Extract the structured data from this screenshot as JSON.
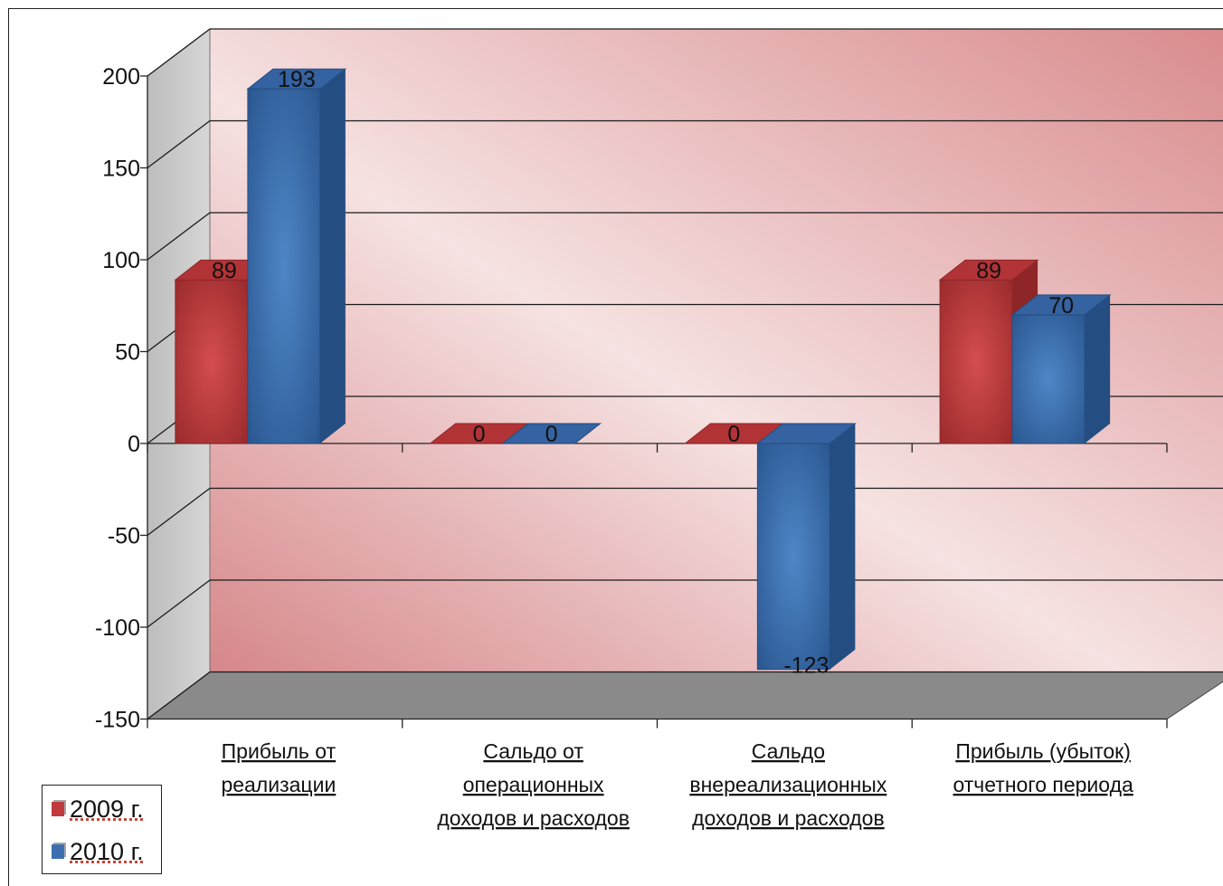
{
  "chart_data": {
    "type": "bar",
    "categories": [
      [
        "Прибыль от",
        "реализации"
      ],
      [
        "Сальдо от",
        "операционных",
        "доходов и расходов"
      ],
      [
        "Сальдо",
        "внереализационных",
        "доходов и расходов"
      ],
      [
        "Прибыль (убыток)",
        "отчетного периода"
      ]
    ],
    "series": [
      {
        "name": "2009 г.",
        "values": [
          89,
          0,
          0,
          89
        ],
        "color": "#c0393d"
      },
      {
        "name": "2010 г.",
        "values": [
          193,
          0,
          -123,
          70
        ],
        "color": "#3d6fb0"
      }
    ],
    "data_labels": [
      [
        "89",
        "0",
        "0",
        "89"
      ],
      [
        "193",
        "0",
        "-123",
        "70"
      ]
    ],
    "yticks": [
      "200",
      "150",
      "100",
      "50",
      "0",
      "-50",
      "-100",
      "-150"
    ],
    "ylim": [
      -150,
      200
    ],
    "grid": true,
    "legend_position": "bottom-left",
    "style": "3d-column"
  },
  "legend": {
    "items": [
      "2009 г.",
      "2010 г."
    ]
  }
}
